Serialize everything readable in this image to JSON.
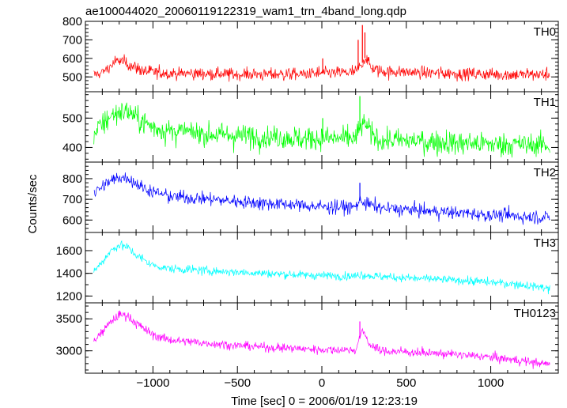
{
  "chart_data": {
    "type": "line",
    "title": "ae100044020_20060119122319_wam1_trn_4band_long.qdp",
    "xlabel": "Time [sec] 0 = 2006/01/19 12:23:19",
    "ylabel": "Counts/sec",
    "xlim": [
      -1400,
      1400
    ],
    "x_ticks": [
      -1000,
      -500,
      0,
      500,
      1000
    ],
    "x_tick_labels": [
      "−1000",
      "−500",
      "0",
      "500",
      "1000"
    ],
    "data_x_range": [
      -1350,
      1350
    ],
    "panels": [
      {
        "name": "TH0",
        "color": "#ff0000",
        "ylim": [
          420,
          800
        ],
        "yticks": [
          500,
          600,
          700,
          800
        ],
        "baseline": [
          [
            -1350,
            510
          ],
          [
            -1300,
            525
          ],
          [
            -1250,
            560
          ],
          [
            -1200,
            590
          ],
          [
            -1150,
            570
          ],
          [
            -1050,
            530
          ],
          [
            -900,
            520
          ],
          [
            -500,
            515
          ],
          [
            -100,
            515
          ],
          [
            0,
            520
          ],
          [
            200,
            525
          ],
          [
            230,
            560
          ],
          [
            260,
            610
          ],
          [
            290,
            550
          ],
          [
            350,
            530
          ],
          [
            600,
            522
          ],
          [
            1000,
            515
          ],
          [
            1350,
            512
          ]
        ],
        "noise": 32,
        "spikes": [
          [
            5,
            600
          ],
          [
            215,
            700
          ],
          [
            240,
            780
          ],
          [
            255,
            740
          ]
        ]
      },
      {
        "name": "TH1",
        "color": "#00ff00",
        "ylim": [
          350,
          590
        ],
        "yticks": [
          400,
          500
        ],
        "baseline": [
          [
            -1350,
            445
          ],
          [
            -1300,
            480
          ],
          [
            -1250,
            505
          ],
          [
            -1200,
            520
          ],
          [
            -1150,
            525
          ],
          [
            -1100,
            500
          ],
          [
            -1000,
            470
          ],
          [
            -900,
            455
          ],
          [
            -500,
            440
          ],
          [
            -100,
            430
          ],
          [
            0,
            432
          ],
          [
            200,
            430
          ],
          [
            230,
            470
          ],
          [
            260,
            480
          ],
          [
            290,
            445
          ],
          [
            350,
            425
          ],
          [
            700,
            418
          ],
          [
            1000,
            412
          ],
          [
            1350,
            408
          ]
        ],
        "noise": 38,
        "spikes": [
          [
            5,
            500
          ],
          [
            225,
            575
          ]
        ]
      },
      {
        "name": "TH2",
        "color": "#0000ff",
        "ylim": [
          540,
          880
        ],
        "yticks": [
          600,
          700,
          800
        ],
        "baseline": [
          [
            -1350,
            730
          ],
          [
            -1300,
            760
          ],
          [
            -1250,
            790
          ],
          [
            -1200,
            805
          ],
          [
            -1150,
            805
          ],
          [
            -1100,
            775
          ],
          [
            -1000,
            735
          ],
          [
            -900,
            715
          ],
          [
            -500,
            690
          ],
          [
            -100,
            670
          ],
          [
            0,
            665
          ],
          [
            200,
            662
          ],
          [
            230,
            700
          ],
          [
            260,
            680
          ],
          [
            350,
            658
          ],
          [
            700,
            640
          ],
          [
            1000,
            625
          ],
          [
            1350,
            612
          ]
        ],
        "noise": 30,
        "spikes": [
          [
            225,
            780
          ]
        ]
      },
      {
        "name": "TH3",
        "color": "#00ffff",
        "ylim": [
          1140,
          1760
        ],
        "yticks": [
          1200,
          1400,
          1600
        ],
        "baseline": [
          [
            -1350,
            1420
          ],
          [
            -1300,
            1500
          ],
          [
            -1250,
            1600
          ],
          [
            -1200,
            1650
          ],
          [
            -1150,
            1630
          ],
          [
            -1100,
            1560
          ],
          [
            -1000,
            1470
          ],
          [
            -900,
            1440
          ],
          [
            -500,
            1410
          ],
          [
            -100,
            1385
          ],
          [
            0,
            1380
          ],
          [
            200,
            1375
          ],
          [
            230,
            1395
          ],
          [
            260,
            1380
          ],
          [
            500,
            1360
          ],
          [
            800,
            1340
          ],
          [
            1100,
            1310
          ],
          [
            1300,
            1280
          ],
          [
            1350,
            1260
          ]
        ],
        "noise": 35,
        "spikes": []
      },
      {
        "name": "TH0123",
        "color": "#ff00ff",
        "ylim": [
          2650,
          3750
        ],
        "yticks": [
          3000,
          3500
        ],
        "baseline": [
          [
            -1350,
            3150
          ],
          [
            -1300,
            3300
          ],
          [
            -1250,
            3450
          ],
          [
            -1200,
            3560
          ],
          [
            -1150,
            3550
          ],
          [
            -1100,
            3430
          ],
          [
            -1000,
            3250
          ],
          [
            -900,
            3170
          ],
          [
            -500,
            3080
          ],
          [
            -100,
            3030
          ],
          [
            0,
            3020
          ],
          [
            200,
            3010
          ],
          [
            230,
            3250
          ],
          [
            250,
            3300
          ],
          [
            280,
            3100
          ],
          [
            350,
            3000
          ],
          [
            700,
            2960
          ],
          [
            1000,
            2900
          ],
          [
            1350,
            2790
          ]
        ],
        "noise": 65,
        "spikes": [
          [
            225,
            3460
          ]
        ]
      }
    ]
  }
}
